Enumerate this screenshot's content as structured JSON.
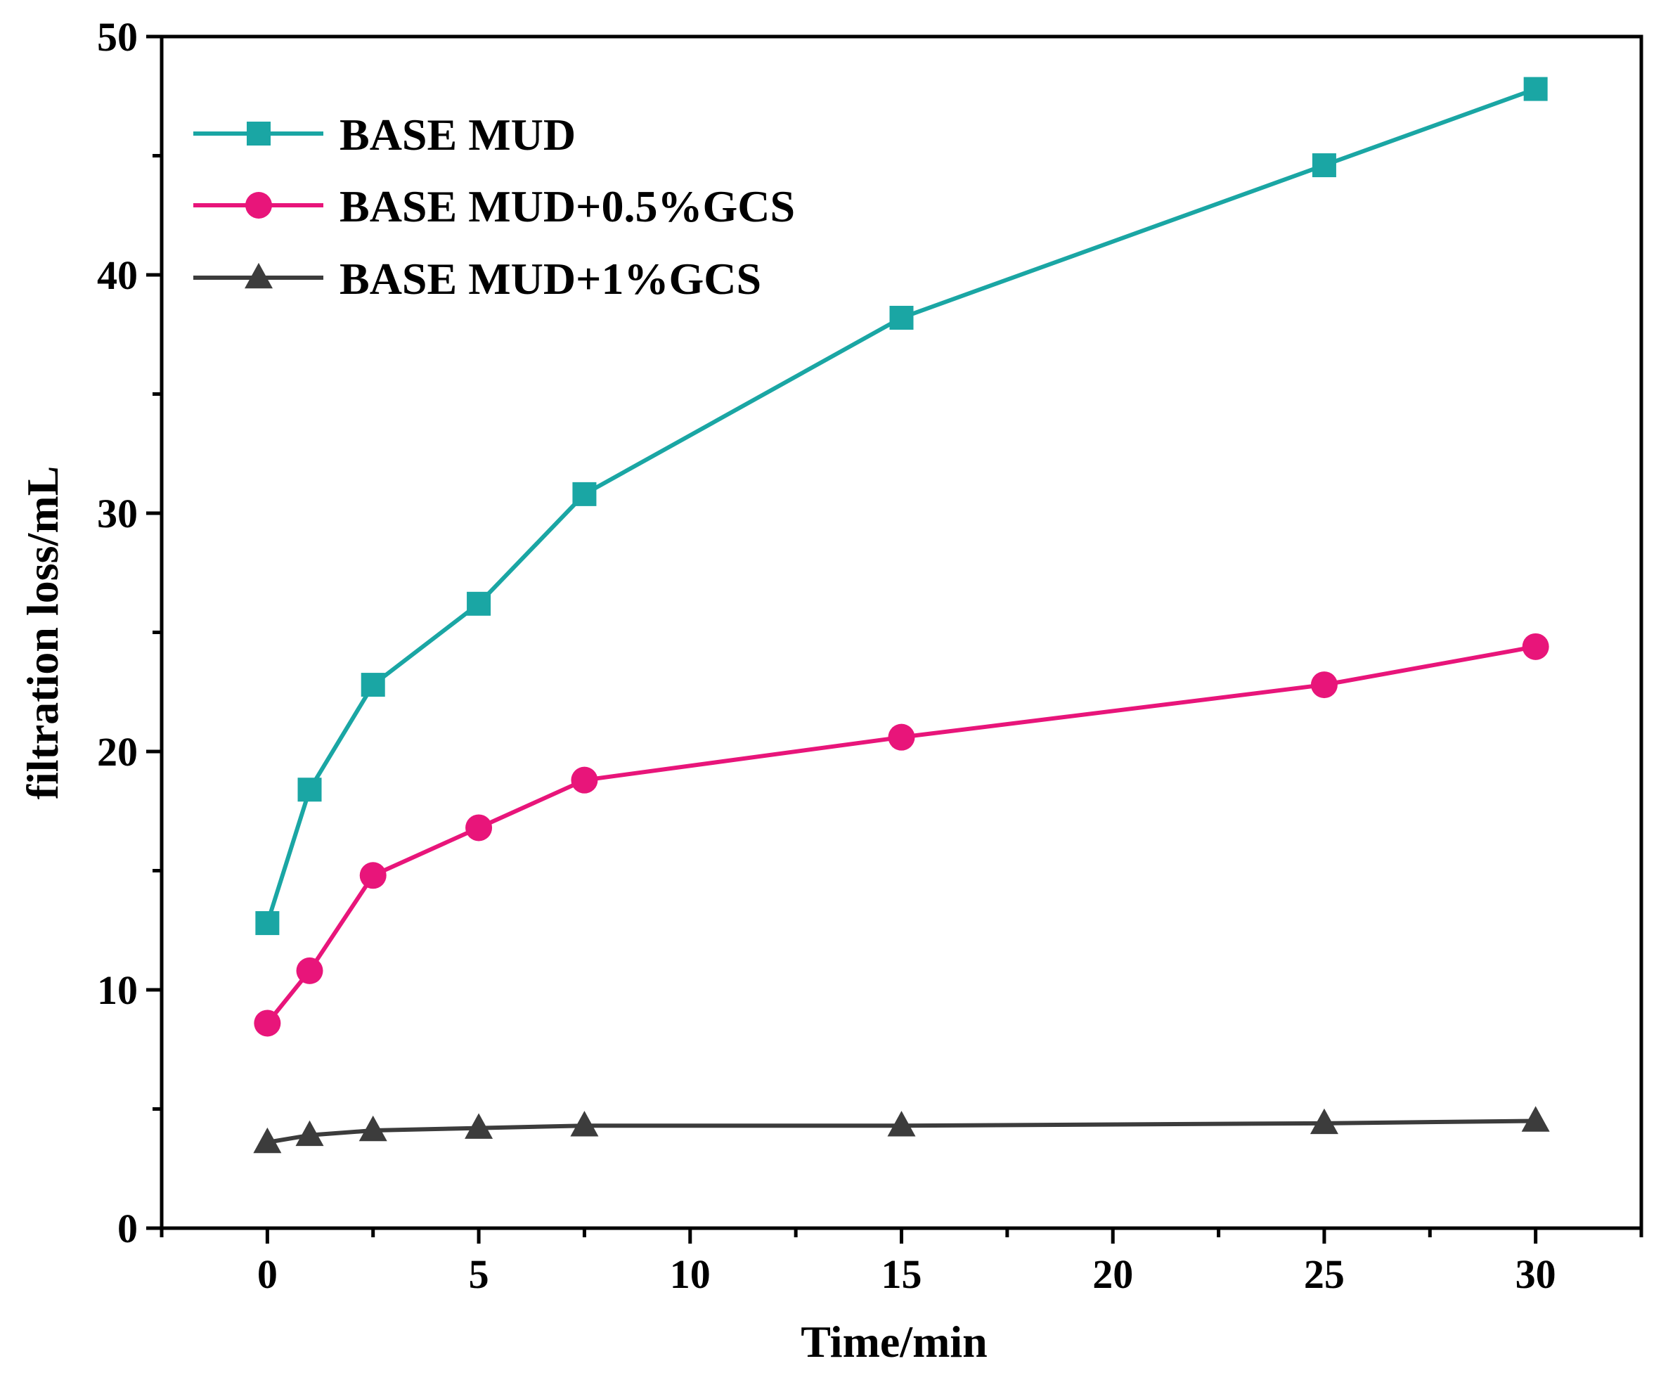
{
  "chart_data": {
    "type": "line",
    "title": "",
    "xlabel": "Time/min",
    "ylabel": "filtration loss/mL",
    "xlim": [
      -2.5,
      32.5
    ],
    "ylim": [
      0,
      50
    ],
    "x_ticks": [
      0,
      5,
      10,
      15,
      20,
      25,
      30
    ],
    "y_ticks": [
      0,
      10,
      20,
      30,
      40,
      50
    ],
    "x_tick_labels": [
      "0",
      "5",
      "10",
      "15",
      "20",
      "25",
      "30"
    ],
    "y_tick_labels": [
      "0",
      "10",
      "20",
      "30",
      "40",
      "50"
    ],
    "x_minor_step": 2.5,
    "y_minor_step": 5,
    "grid": false,
    "legend_position": "top-left",
    "x": [
      0,
      1,
      2.5,
      5,
      7.5,
      15,
      25,
      30
    ],
    "series": [
      {
        "name": "BASE MUD",
        "color": "#1aa6a4",
        "marker": "square",
        "values": [
          12.8,
          18.4,
          22.8,
          26.2,
          30.8,
          38.2,
          44.6,
          47.8
        ]
      },
      {
        "name": "BASE MUD+0.5%GCS",
        "color": "#e8157a",
        "marker": "circle",
        "values": [
          8.6,
          10.8,
          14.8,
          16.8,
          18.8,
          20.6,
          22.8,
          24.4
        ]
      },
      {
        "name": "BASE MUD+1%GCS",
        "color": "#3c3c3c",
        "marker": "triangle",
        "values": [
          3.6,
          3.9,
          4.1,
          4.2,
          4.3,
          4.3,
          4.4,
          4.5
        ]
      }
    ]
  }
}
